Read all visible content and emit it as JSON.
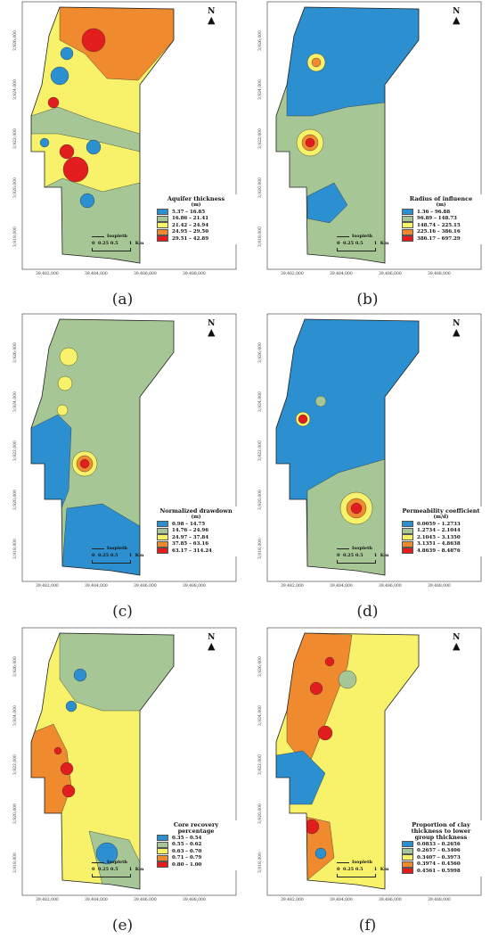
{
  "colors": {
    "c1": "#2b8fd0",
    "c2": "#a6c795",
    "c3": "#f7f26a",
    "c4": "#f08a2e",
    "c5": "#e21d1d"
  },
  "axes": {
    "y_ticks": [
      "3,918,000",
      "3,920,000",
      "3,922,000",
      "3,924,000",
      "3,926,000"
    ],
    "x_ticks": [
      "39,482,000",
      "39,484,000",
      "39,486,000",
      "39,488,000"
    ]
  },
  "north_label": "N",
  "scale": {
    "isopleth": "Isopleth",
    "bar_text": "0  0.25 0.5       1  Km"
  },
  "panels": [
    {
      "caption": "(a)",
      "legend_title": "Aquifer thickness",
      "legend_unit": "(m)",
      "classes": [
        "5.37 – 16.85",
        "16.86 – 21.41",
        "21.42 – 24.94",
        "24.95 – 29.50",
        "29.51 – 42.89"
      ]
    },
    {
      "caption": "(b)",
      "legend_title": "Radius of influence",
      "legend_unit": "(m)",
      "classes": [
        "1.36 – 96.88",
        "96.89 – 148.73",
        "148.74 – 225.15",
        "225.16 – 386.16",
        "386.17 – 697.29"
      ]
    },
    {
      "caption": "(c)",
      "legend_title": "Normalized drawdown",
      "legend_unit": "(m)",
      "classes": [
        "0.98 – 14.75",
        "14.76 – 24.96",
        "24.97 – 37.84",
        "37.85 – 63.16",
        "63.17 – 314.24"
      ]
    },
    {
      "caption": "(d)",
      "legend_title": "Permeability coefficient",
      "legend_unit": "(m/d)",
      "classes": [
        "0.0059 – 1.2733",
        "1.2734 – 2.1044",
        "2.1045 – 3.1350",
        "3.1351 – 4.8638",
        "4.8639 – 8.4876"
      ]
    },
    {
      "caption": "(e)",
      "legend_title": "Core recovery percentage",
      "legend_unit": "",
      "classes": [
        "0.35 – 0.54",
        "0.55 – 0.62",
        "0.63 – 0.70",
        "0.71 – 0.79",
        "0.80 – 1.00"
      ]
    },
    {
      "caption": "(f)",
      "legend_title": "Proportion of clay thickness to lower group thickness",
      "legend_unit": "",
      "classes": [
        "0.0833 – 0.2656",
        "0.2657 – 0.3406",
        "0.3407 – 0.3973",
        "0.3974 – 0.4560",
        "0.4561 – 0.5998"
      ]
    }
  ]
}
